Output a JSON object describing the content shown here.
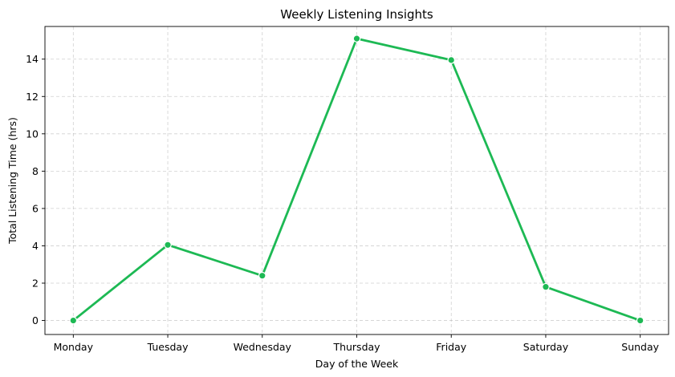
{
  "chart_data": {
    "type": "line",
    "title": "Weekly Listening Insights",
    "xlabel": "Day of the Week",
    "ylabel": "Total Listening Time (hrs)",
    "categories": [
      "Monday",
      "Tuesday",
      "Wednesday",
      "Thursday",
      "Friday",
      "Saturday",
      "Sunday"
    ],
    "series": [
      {
        "values": [
          0.0,
          4.05,
          2.4,
          15.1,
          13.95,
          1.8,
          0.0
        ],
        "color": "#1db954"
      }
    ],
    "ylim": [
      -0.75,
      15.75
    ],
    "yticks": [
      0,
      2,
      4,
      6,
      8,
      10,
      12,
      14
    ],
    "grid": true,
    "marker": "circle"
  }
}
